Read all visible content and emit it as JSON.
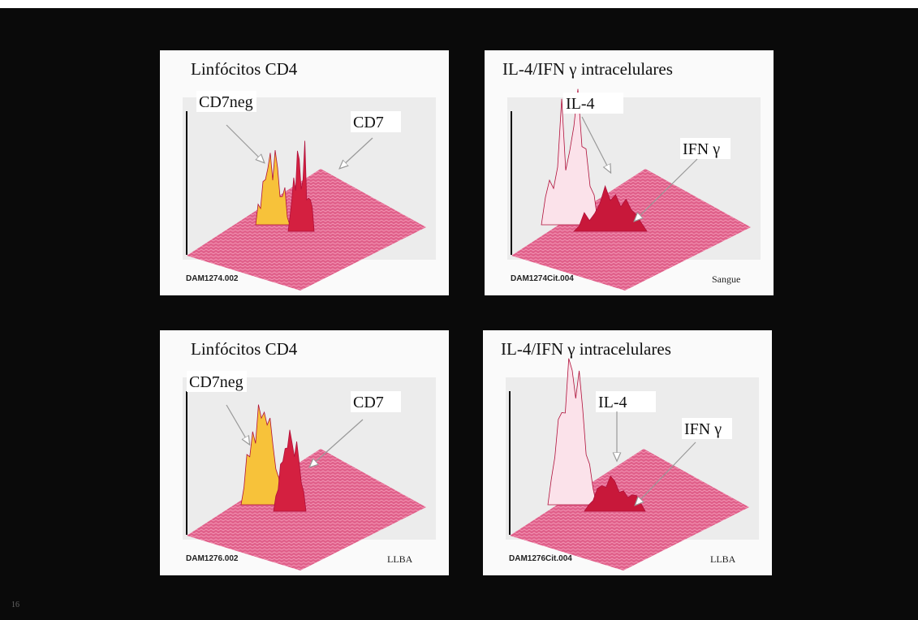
{
  "panels": [
    {
      "title": "Linfócitos CD4",
      "labels": [
        "CD7neg",
        "CD7"
      ],
      "file": "DAM1274.002"
    },
    {
      "title": "IL-4/IFN γ intracelulares",
      "labels": [
        "IL-4",
        "IFN γ"
      ],
      "file": "DAM1274Cit.004",
      "site": "Sangue"
    },
    {
      "title": "Linfócitos CD4",
      "labels": [
        "CD7neg",
        "CD7"
      ],
      "file": "DAM1276.002",
      "site": "LLBA"
    },
    {
      "title": "IL-4/IFN γ intracelulares",
      "labels": [
        "IL-4",
        "IFN γ"
      ],
      "file": "DAM1276Cit.004",
      "site": "LLBA"
    }
  ],
  "page_number": "16"
}
